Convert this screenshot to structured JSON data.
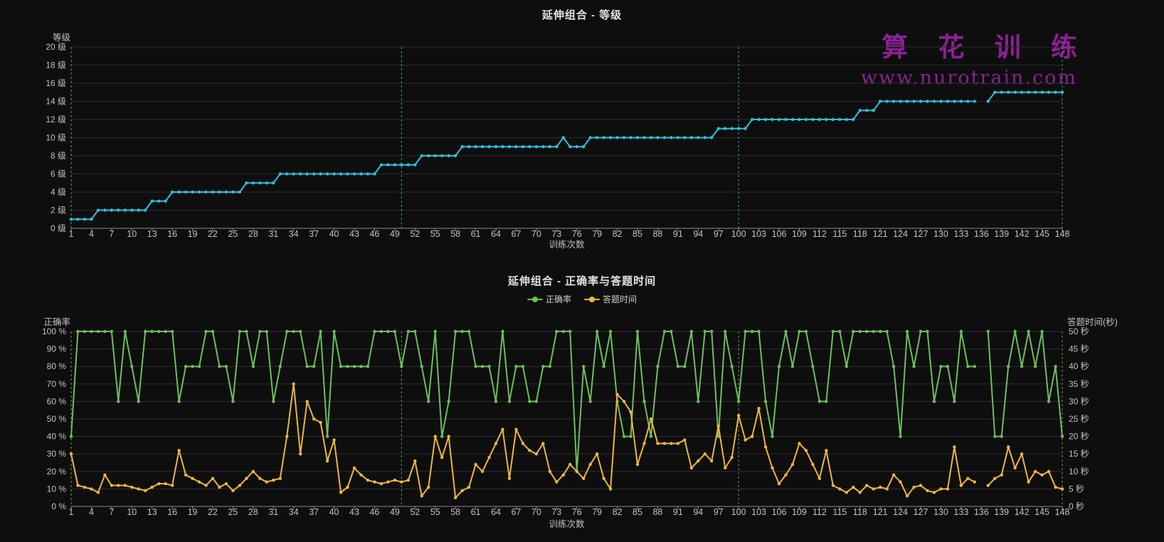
{
  "page": {
    "background": "#0e0e0e",
    "grid_color": "#2c2c2e",
    "axis_line_color": "#8a8a8a",
    "label_color": "#c2c2c6",
    "title_color": "#e3e3e6"
  },
  "watermark": {
    "brand": "算 花 训 练",
    "url": "www.nurotrain.com",
    "color": "#8B2192"
  },
  "chart_data": [
    {
      "type": "line",
      "title": "延伸组合 - 等级",
      "xlabel": "训练次数",
      "ylabel": "等级",
      "x_first": 1,
      "x_last": 148,
      "x_label_interval": 3,
      "x_tick_labels": [
        1,
        4,
        7,
        10,
        13,
        16,
        19,
        22,
        25,
        28,
        31,
        34,
        37,
        40,
        43,
        46,
        49,
        52,
        55,
        58,
        61,
        64,
        67,
        70,
        73,
        76,
        79,
        82,
        85,
        88,
        91,
        94,
        97,
        100,
        103,
        106,
        109,
        112,
        115,
        118,
        121,
        124,
        127,
        130,
        133,
        136,
        139,
        142,
        145,
        148
      ],
      "ylim": [
        0,
        20
      ],
      "y_tick_labels": [
        "0 级",
        "2 级",
        "4 级",
        "6 级",
        "8 级",
        "10 级",
        "12 级",
        "14 级",
        "16 级",
        "18 级",
        "20 级"
      ],
      "grid": true,
      "marklines_x": [
        50,
        100
      ],
      "series": [
        {
          "name": "等级",
          "color": "#2bc2d8",
          "axis": "left",
          "values": [
            1,
            1,
            1,
            1,
            2,
            2,
            2,
            2,
            2,
            2,
            2,
            2,
            3,
            3,
            3,
            4,
            4,
            4,
            4,
            4,
            4,
            4,
            4,
            4,
            4,
            4,
            5,
            5,
            5,
            5,
            5,
            6,
            6,
            6,
            6,
            6,
            6,
            6,
            6,
            6,
            6,
            6,
            6,
            6,
            6,
            6,
            7,
            7,
            7,
            7,
            7,
            7,
            8,
            8,
            8,
            8,
            8,
            8,
            9,
            9,
            9,
            9,
            9,
            9,
            9,
            9,
            9,
            9,
            9,
            9,
            9,
            9,
            9,
            10,
            9,
            9,
            9,
            10,
            10,
            10,
            10,
            10,
            10,
            10,
            10,
            10,
            10,
            10,
            10,
            10,
            10,
            10,
            10,
            10,
            10,
            10,
            11,
            11,
            11,
            11,
            11,
            12,
            12,
            12,
            12,
            12,
            12,
            12,
            12,
            12,
            12,
            12,
            12,
            12,
            12,
            12,
            12,
            13,
            13,
            13,
            14,
            14,
            14,
            14,
            14,
            14,
            14,
            14,
            14,
            14,
            14,
            14,
            14,
            14,
            14,
            null,
            14,
            15,
            15,
            15,
            15,
            15,
            15,
            15,
            15,
            15,
            15,
            15
          ]
        }
      ]
    },
    {
      "type": "line",
      "title": "延伸组合 - 正确率与答题时间",
      "xlabel": "训练次数",
      "ylabel_left": "正确率",
      "ylabel_right": "答题时间(秒)",
      "legend": [
        "正确率",
        "答题时间"
      ],
      "x_first": 1,
      "x_last": 148,
      "x_label_interval": 3,
      "x_tick_labels": [
        1,
        4,
        7,
        10,
        13,
        16,
        19,
        22,
        25,
        28,
        31,
        34,
        37,
        40,
        43,
        46,
        49,
        52,
        55,
        58,
        61,
        64,
        67,
        70,
        73,
        76,
        79,
        82,
        85,
        88,
        91,
        94,
        97,
        100,
        103,
        106,
        109,
        112,
        115,
        118,
        121,
        124,
        127,
        130,
        133,
        136,
        139,
        142,
        145,
        148
      ],
      "ylim_left": [
        0,
        100
      ],
      "y_tick_labels_left": [
        "0 %",
        "10 %",
        "20 %",
        "30 %",
        "40 %",
        "50 %",
        "60 %",
        "70 %",
        "80 %",
        "90 %",
        "100 %"
      ],
      "ylim_right": [
        0,
        50
      ],
      "y_tick_labels_right": [
        "0 秒",
        "5 秒",
        "10 秒",
        "15 秒",
        "20 秒",
        "25 秒",
        "30 秒",
        "35 秒",
        "40 秒",
        "45 秒",
        "50 秒"
      ],
      "grid": true,
      "marklines_x": [
        50,
        100
      ],
      "series": [
        {
          "name": "正确率",
          "color": "#6cbf5c",
          "axis": "left",
          "values": [
            40,
            100,
            100,
            100,
            100,
            100,
            100,
            60,
            100,
            80,
            60,
            100,
            100,
            100,
            100,
            100,
            60,
            80,
            80,
            80,
            100,
            100,
            80,
            80,
            60,
            100,
            100,
            80,
            100,
            100,
            60,
            80,
            100,
            100,
            100,
            80,
            80,
            100,
            40,
            100,
            80,
            80,
            80,
            80,
            80,
            100,
            100,
            100,
            100,
            80,
            100,
            100,
            80,
            60,
            100,
            40,
            60,
            100,
            100,
            100,
            80,
            80,
            80,
            60,
            100,
            60,
            80,
            80,
            60,
            60,
            80,
            80,
            100,
            100,
            100,
            20,
            80,
            60,
            100,
            80,
            100,
            60,
            40,
            40,
            100,
            60,
            40,
            80,
            100,
            100,
            80,
            80,
            100,
            60,
            100,
            100,
            40,
            100,
            80,
            60,
            100,
            100,
            100,
            60,
            40,
            80,
            100,
            80,
            100,
            100,
            80,
            60,
            60,
            100,
            100,
            80,
            100,
            100,
            100,
            100,
            100,
            100,
            80,
            40,
            100,
            80,
            100,
            100,
            60,
            80,
            80,
            60,
            100,
            80,
            80,
            null,
            100,
            40,
            40,
            80,
            100,
            80,
            100,
            80,
            100,
            60,
            80,
            40
          ]
        },
        {
          "name": "答题时间",
          "color": "#ecb73e",
          "axis": "right",
          "values": [
            15,
            6,
            5.5,
            5,
            4,
            9,
            6,
            6,
            6,
            5.5,
            5,
            4.5,
            5.5,
            6.5,
            6.5,
            6,
            16,
            9,
            8,
            7,
            6,
            8,
            5.5,
            6.5,
            4.5,
            6,
            8,
            10,
            8,
            7,
            7.5,
            8,
            20,
            35,
            15,
            30,
            25,
            24,
            13,
            19,
            4,
            5.5,
            11,
            9,
            7.5,
            7,
            6.5,
            7,
            7.5,
            7,
            7.5,
            13,
            3,
            5.5,
            20,
            14,
            20,
            2.5,
            4.5,
            5.5,
            12,
            10,
            14,
            18,
            22,
            8,
            22,
            18,
            16,
            15,
            18,
            10,
            7,
            9,
            12,
            10,
            8,
            12,
            15,
            8,
            5,
            32,
            30,
            27,
            12,
            18,
            25,
            18,
            18,
            18,
            18,
            19,
            11,
            13,
            15,
            13,
            23,
            11,
            14,
            26,
            19,
            20,
            28,
            17,
            11,
            6.5,
            9,
            12,
            18,
            16,
            12,
            8,
            16,
            6,
            5,
            4,
            5.5,
            4,
            6,
            5,
            5.5,
            5,
            9,
            7,
            3,
            5.5,
            6,
            4.5,
            4,
            5,
            5,
            17,
            6,
            8,
            7,
            null,
            6,
            8,
            9,
            17,
            11,
            15,
            7,
            10,
            9,
            10,
            5.5,
            5
          ]
        }
      ]
    }
  ]
}
